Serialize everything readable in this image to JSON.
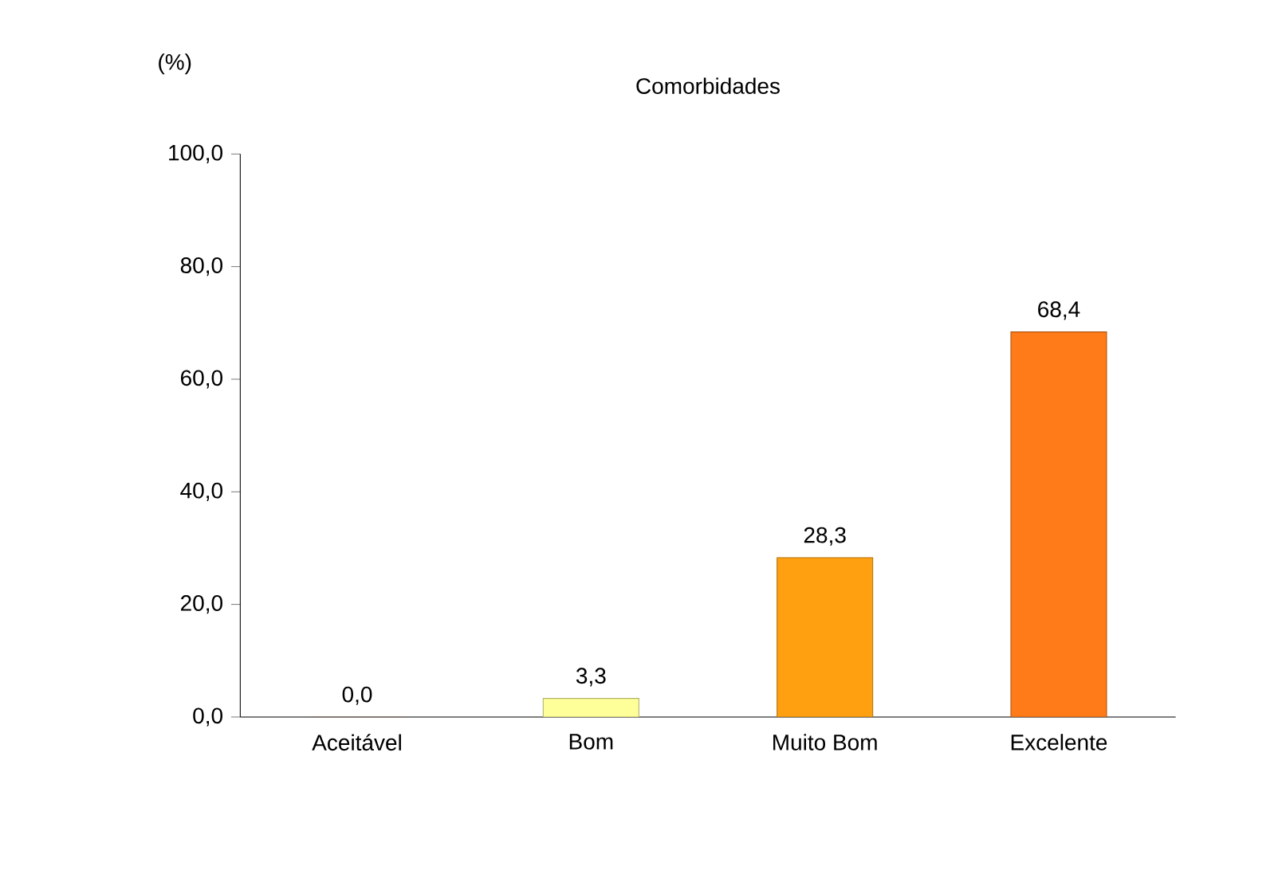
{
  "chart_data": {
    "type": "bar",
    "title": "Comorbidades",
    "ylabel": "(%)",
    "categories": [
      "Aceitável",
      "Bom",
      "Muito Bom",
      "Excelente"
    ],
    "values": [
      0.0,
      3.3,
      28.3,
      68.4
    ],
    "colors": [
      "#d9a27a",
      "#ffff99",
      "#ffa010",
      "#ff7a18"
    ],
    "value_labels": [
      "0,0",
      "3,3",
      "28,3",
      "68,4"
    ],
    "ylim": [
      0,
      100
    ],
    "yticks": [
      {
        "value": 0,
        "label": "0,0"
      },
      {
        "value": 20,
        "label": "20,0"
      },
      {
        "value": 40,
        "label": "40,0"
      },
      {
        "value": 60,
        "label": "60,0"
      },
      {
        "value": 80,
        "label": "80,0"
      },
      {
        "value": 100,
        "label": "100,0"
      }
    ],
    "grid": false
  }
}
